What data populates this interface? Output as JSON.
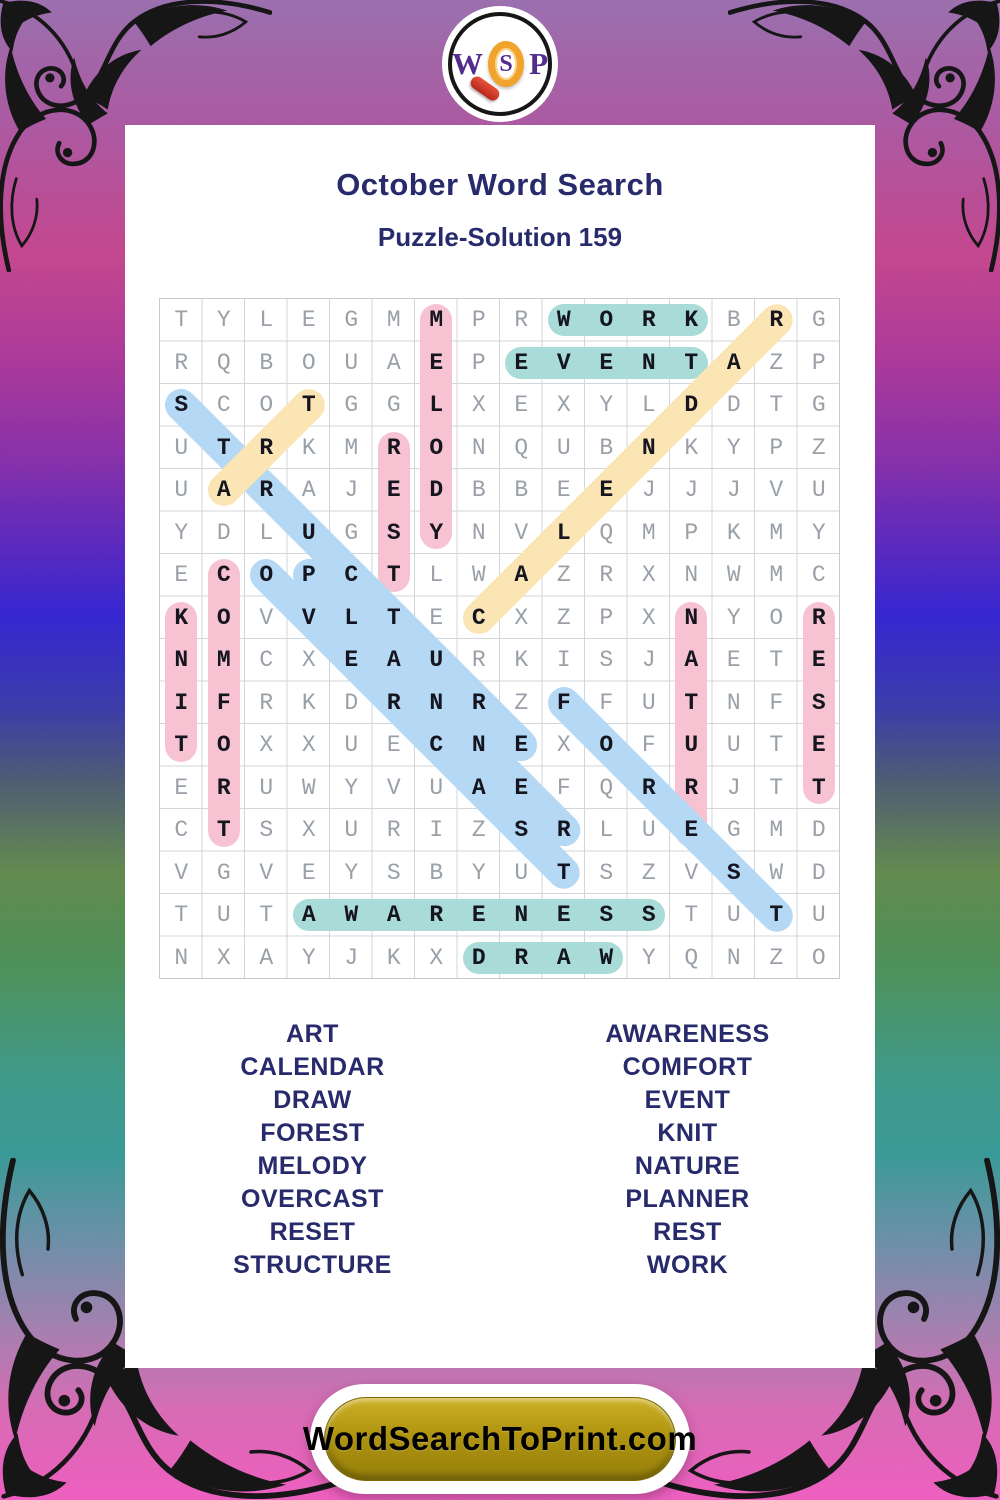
{
  "page": {
    "title": "October Word Search",
    "subtitle": "Puzzle-Solution 159"
  },
  "logo": {
    "letter_w": "W",
    "letter_s": "S",
    "letter_p": "P"
  },
  "colors": {
    "heading_navy": "#272a6b",
    "logo_purple": "#532d8d",
    "button_gold": "#b09410",
    "magnifier_orange": "#f2a32b",
    "magnifier_handle_red": "#c12a1c"
  },
  "highlight_colors": {
    "teal": "#a9dcd8",
    "pink": "#f7c3d2",
    "blue": "#b5d8f4",
    "yellow": "#fbe5b4"
  },
  "grid": {
    "size": 16,
    "rows": [
      "TYLEGMMPRWORKBRG",
      "RQBOUAEPEVENTAZP",
      "SCOTGGLXEXYLDDTG",
      "UTRKMRONQUBNKYPZ",
      "UARAJEDBBEEJJJVU",
      "YDLUGSYNVLQMPKMY",
      "ECOPCTLWAZRXNWMC",
      "KOVVLTECXZPXNYOR",
      "NMCXEAURKISJAETE",
      "IFRKDRNRZFFUTNFS",
      "TOXXUECNEXOFUUTE",
      "ERUWYVUAEFQRRJTT",
      "CTSXURIZSRLUEGMD",
      "VGVEYSBYUTSZVSWD",
      "TUTAWARENESSTUTU",
      "NXAYJKXDRAWYQNZO"
    ]
  },
  "solutions": [
    {
      "word": "WORK",
      "row": 1,
      "col": 10,
      "dir": "H",
      "color": "teal"
    },
    {
      "word": "EVENT",
      "row": 2,
      "col": 9,
      "dir": "H",
      "color": "teal"
    },
    {
      "word": "AWARENESS",
      "row": 15,
      "col": 4,
      "dir": "H",
      "color": "teal"
    },
    {
      "word": "DRAW",
      "row": 16,
      "col": 8,
      "dir": "H",
      "color": "teal"
    },
    {
      "word": "MELODY",
      "row": 1,
      "col": 7,
      "dir": "V",
      "color": "pink"
    },
    {
      "word": "REST",
      "row": 4,
      "col": 6,
      "dir": "V",
      "color": "pink"
    },
    {
      "word": "COMFORT",
      "row": 7,
      "col": 2,
      "dir": "V",
      "color": "pink"
    },
    {
      "word": "KNIT",
      "row": 8,
      "col": 1,
      "dir": "V",
      "color": "pink"
    },
    {
      "word": "NATURE",
      "row": 8,
      "col": 13,
      "dir": "V",
      "color": "pink"
    },
    {
      "word": "RESET",
      "row": 8,
      "col": 16,
      "dir": "V",
      "color": "pink"
    },
    {
      "word": "STRUCTURE",
      "row": 3,
      "col": 1,
      "dir": "DR",
      "color": "blue"
    },
    {
      "word": "OVERCAST",
      "row": 7,
      "col": 3,
      "dir": "DR",
      "color": "blue"
    },
    {
      "word": "PLANNER",
      "row": 7,
      "col": 4,
      "dir": "DR",
      "color": "blue"
    },
    {
      "word": "FOREST",
      "row": 10,
      "col": 10,
      "dir": "DR",
      "color": "blue"
    },
    {
      "word": "ART",
      "row": 5,
      "col": 2,
      "dir": "UR",
      "color": "yellow"
    },
    {
      "word": "CALENDAR",
      "row": 8,
      "col": 8,
      "dir": "UR",
      "color": "yellow"
    }
  ],
  "word_lists": {
    "left": [
      "ART",
      "CALENDAR",
      "DRAW",
      "FOREST",
      "MELODY",
      "OVERCAST",
      "RESET",
      "STRUCTURE"
    ],
    "right": [
      "AWARENESS",
      "COMFORT",
      "EVENT",
      "KNIT",
      "NATURE",
      "PLANNER",
      "REST",
      "WORK"
    ]
  },
  "footer": {
    "site_label": "WordSearchToPrint.com"
  }
}
